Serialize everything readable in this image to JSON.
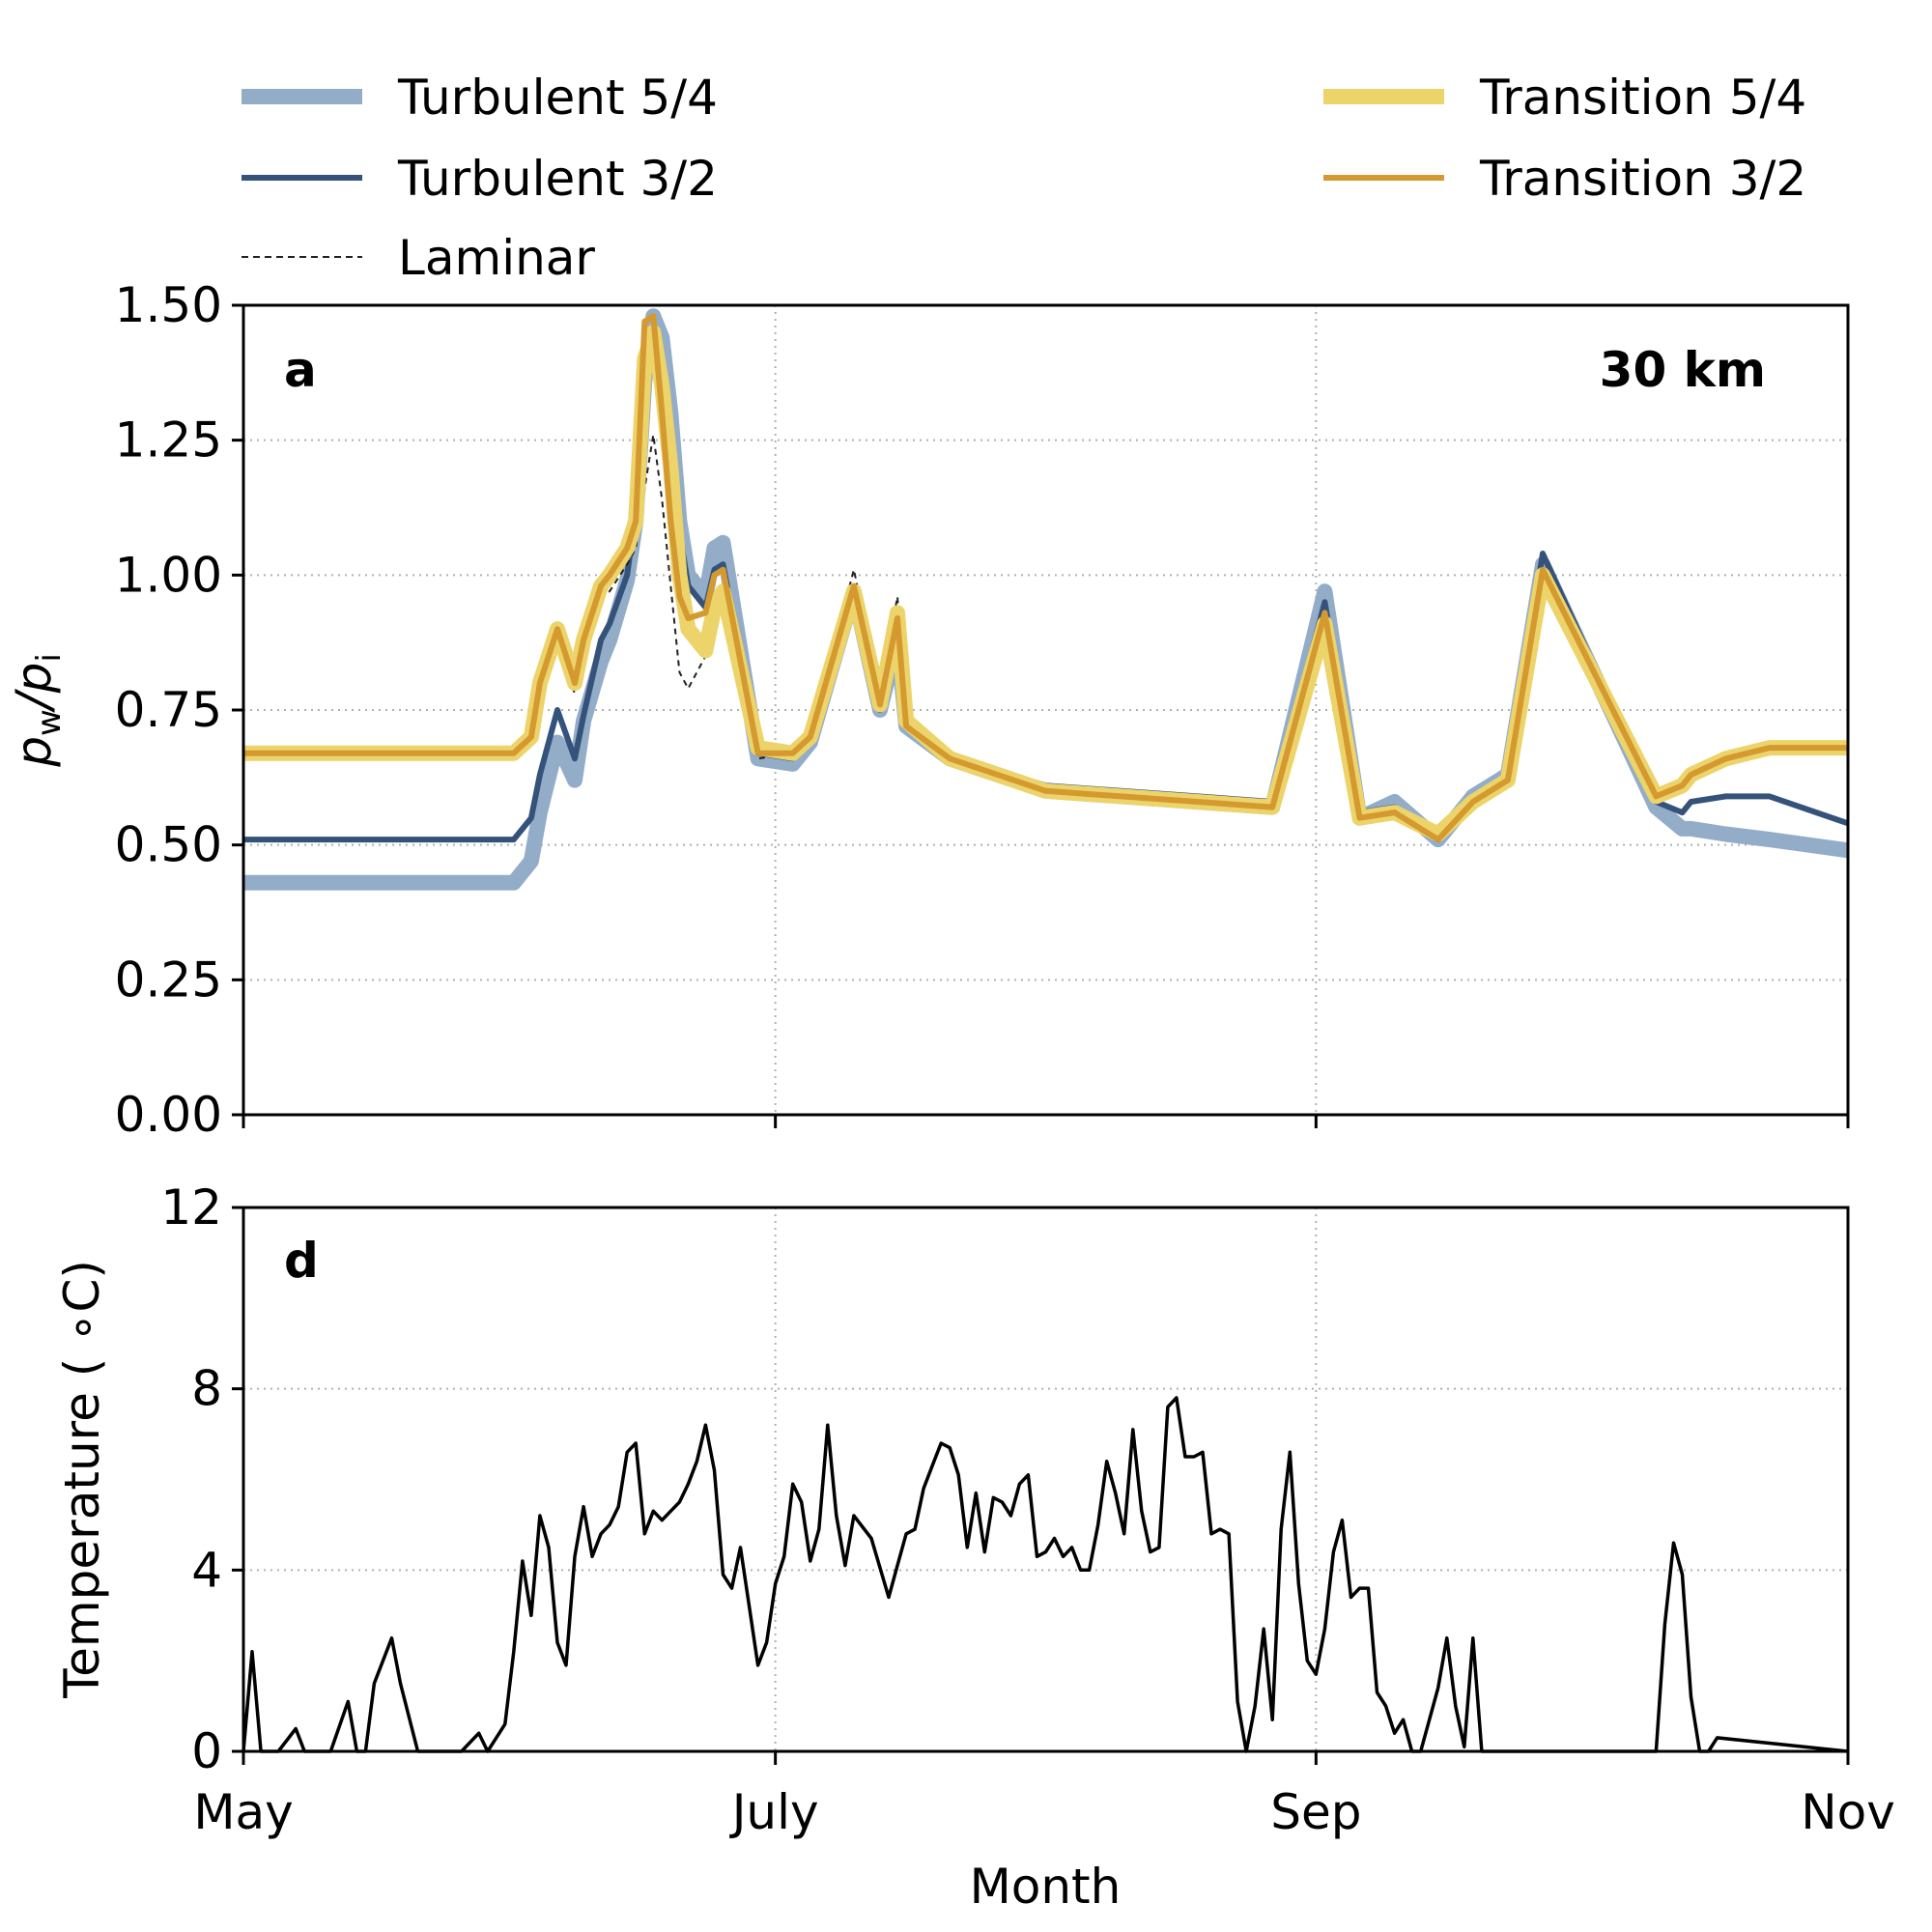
{
  "chart_data": [
    {
      "panel": "a",
      "type": "line",
      "annotation": "30 km",
      "ylabel": "p_w/p_i",
      "ylabel_main": "p",
      "ylabel_sub1": "w",
      "ylabel_sep": "/p",
      "ylabel_sub2": "i",
      "ylim": [
        0,
        1.5
      ],
      "yticks": [
        "0.00",
        "0.25",
        "0.50",
        "0.75",
        "1.00",
        "1.25",
        "1.50"
      ],
      "yticks_values": [
        0,
        0.25,
        0.5,
        0.75,
        1.0,
        1.25,
        1.5
      ],
      "xlim": [
        0,
        184
      ],
      "grid": true,
      "legend_position": "top",
      "series": [
        {
          "name": "Turbulent 5/4",
          "color": "#93adc8",
          "style": "thick",
          "x": [
            0,
            31,
            33,
            34,
            36,
            38,
            39,
            41,
            42,
            44,
            45,
            46,
            47,
            48,
            49,
            50,
            51,
            53,
            54,
            55,
            59,
            63,
            65,
            70,
            73,
            75,
            76,
            81,
            92,
            118,
            124,
            128,
            132,
            137,
            141,
            145,
            149,
            162,
            165,
            166,
            170,
            175,
            184
          ],
          "y": [
            0.43,
            0.43,
            0.47,
            0.56,
            0.69,
            0.62,
            0.73,
            0.84,
            0.88,
            0.99,
            1.1,
            1.36,
            1.48,
            1.44,
            1.3,
            1.1,
            1.0,
            0.96,
            1.05,
            1.06,
            0.66,
            0.65,
            0.69,
            0.97,
            0.75,
            0.88,
            0.72,
            0.66,
            0.6,
            0.57,
            0.97,
            0.55,
            0.58,
            0.51,
            0.59,
            0.63,
            1.02,
            0.57,
            0.53,
            0.53,
            0.52,
            0.51,
            0.49
          ]
        },
        {
          "name": "Turbulent 3/2",
          "color": "#34527a",
          "style": "medium",
          "x": [
            0,
            31,
            33,
            34,
            36,
            38,
            39,
            41,
            42,
            44,
            45,
            46,
            47,
            48,
            49,
            50,
            51,
            53,
            54,
            55,
            59,
            63,
            65,
            70,
            73,
            75,
            76,
            81,
            92,
            118,
            124,
            128,
            132,
            137,
            141,
            145,
            149,
            162,
            165,
            166,
            170,
            175,
            184
          ],
          "y": [
            0.51,
            0.51,
            0.55,
            0.63,
            0.75,
            0.66,
            0.74,
            0.88,
            0.91,
            1.0,
            1.12,
            1.38,
            1.43,
            1.38,
            1.27,
            1.08,
            0.98,
            0.94,
            1.01,
            1.02,
            0.67,
            0.66,
            0.7,
            0.96,
            0.75,
            0.87,
            0.72,
            0.66,
            0.61,
            0.58,
            0.95,
            0.56,
            0.57,
            0.52,
            0.59,
            0.63,
            1.04,
            0.58,
            0.56,
            0.58,
            0.59,
            0.59,
            0.54
          ]
        },
        {
          "name": "Laminar",
          "color": "#222222",
          "style": "dashed",
          "x": [
            0,
            31,
            33,
            34,
            36,
            38,
            39,
            41,
            42,
            44,
            45,
            46,
            47,
            48,
            49,
            50,
            51,
            53,
            54,
            55,
            59,
            63,
            65,
            70,
            73,
            75,
            76,
            81,
            92,
            118,
            124,
            128,
            132,
            137,
            141,
            145,
            149,
            162,
            165,
            166,
            170,
            175,
            184
          ],
          "y": [
            0.67,
            0.67,
            0.69,
            0.78,
            0.88,
            0.78,
            0.85,
            0.96,
            0.97,
            1.02,
            1.05,
            1.16,
            1.26,
            1.14,
            0.98,
            0.82,
            0.79,
            0.85,
            0.93,
            0.95,
            0.66,
            0.67,
            0.7,
            1.01,
            0.78,
            0.96,
            0.74,
            0.67,
            0.61,
            0.57,
            0.93,
            0.55,
            0.56,
            0.51,
            0.58,
            0.62,
            1.01,
            0.58,
            0.6,
            0.62,
            0.65,
            0.67,
            0.67
          ]
        },
        {
          "name": "Transition 5/4",
          "color": "#ecd46a",
          "style": "thick",
          "x": [
            0,
            31,
            33,
            34,
            36,
            38,
            39,
            41,
            42,
            44,
            45,
            46,
            47,
            48,
            49,
            50,
            51,
            53,
            54,
            55,
            59,
            63,
            65,
            70,
            73,
            75,
            76,
            81,
            92,
            118,
            124,
            128,
            132,
            137,
            141,
            145,
            149,
            162,
            165,
            166,
            170,
            175,
            184
          ],
          "y": [
            0.67,
            0.67,
            0.7,
            0.8,
            0.9,
            0.8,
            0.88,
            0.98,
            1.0,
            1.05,
            1.1,
            1.4,
            1.45,
            1.35,
            1.2,
            1.0,
            0.9,
            0.86,
            0.94,
            0.97,
            0.68,
            0.67,
            0.7,
            0.97,
            0.76,
            0.93,
            0.73,
            0.66,
            0.6,
            0.57,
            0.91,
            0.55,
            0.56,
            0.52,
            0.58,
            0.62,
            1.0,
            0.59,
            0.61,
            0.63,
            0.66,
            0.68,
            0.68
          ]
        },
        {
          "name": "Transition 3/2",
          "color": "#d4992f",
          "style": "medium",
          "x": [
            0,
            31,
            33,
            34,
            36,
            38,
            39,
            41,
            42,
            44,
            45,
            46,
            47,
            48,
            49,
            50,
            51,
            53,
            54,
            55,
            59,
            63,
            65,
            70,
            73,
            75,
            76,
            81,
            92,
            118,
            124,
            128,
            132,
            137,
            141,
            145,
            149,
            162,
            165,
            166,
            170,
            175,
            184
          ],
          "y": [
            0.67,
            0.67,
            0.7,
            0.8,
            0.9,
            0.8,
            0.88,
            0.98,
            1.0,
            1.05,
            1.1,
            1.47,
            1.48,
            1.3,
            1.1,
            0.96,
            0.92,
            0.93,
            1.0,
            1.01,
            0.67,
            0.67,
            0.7,
            0.98,
            0.76,
            0.92,
            0.72,
            0.66,
            0.6,
            0.57,
            0.93,
            0.55,
            0.56,
            0.51,
            0.58,
            0.62,
            1.01,
            0.59,
            0.61,
            0.63,
            0.66,
            0.68,
            0.68
          ]
        }
      ]
    },
    {
      "panel": "d",
      "type": "line",
      "ylabel": "Temperature ( ∘C)",
      "xlabel": "Month",
      "ylim": [
        0,
        12
      ],
      "yticks": [
        "0",
        "4",
        "8",
        "12"
      ],
      "yticks_values": [
        0,
        4,
        8,
        12
      ],
      "xlim": [
        0,
        184
      ],
      "xticks": [
        "May",
        "July",
        "Sep",
        "Nov"
      ],
      "xticks_values": [
        0,
        61,
        123,
        184
      ],
      "grid": true,
      "series": [
        {
          "name": "",
          "color": "#000000",
          "style": "thin",
          "x": [
            0,
            1,
            2,
            4,
            6,
            7,
            8,
            10,
            12,
            13,
            14,
            15,
            17,
            18,
            20,
            21,
            23,
            25,
            27,
            28,
            30,
            31,
            32,
            33,
            34,
            35,
            36,
            37,
            38,
            39,
            40,
            41,
            42,
            43,
            44,
            45,
            46,
            47,
            48,
            49,
            50,
            51,
            52,
            53,
            54,
            55,
            56,
            57,
            58,
            59,
            60,
            61,
            62,
            63,
            64,
            65,
            66,
            67,
            68,
            69,
            70,
            72,
            74,
            75,
            76,
            77,
            78,
            79,
            80,
            81,
            82,
            83,
            84,
            85,
            86,
            87,
            88,
            89,
            90,
            91,
            92,
            93,
            94,
            95,
            96,
            97,
            98,
            99,
            100,
            101,
            102,
            103,
            104,
            105,
            106,
            107,
            108,
            109,
            110,
            111,
            112,
            113,
            114,
            115,
            116,
            117,
            118,
            119,
            120,
            121,
            122,
            123,
            124,
            125,
            126,
            127,
            128,
            129,
            130,
            131,
            132,
            133,
            134,
            135,
            136,
            137,
            138,
            139,
            140,
            141,
            142,
            143,
            144,
            145,
            162,
            163,
            164,
            165,
            166,
            167,
            168,
            169,
            184
          ],
          "y": [
            0,
            2.2,
            0,
            0,
            0.5,
            0,
            0,
            0,
            1.1,
            0,
            0,
            1.5,
            2.5,
            1.5,
            0,
            0,
            0,
            0,
            0.4,
            0,
            0.6,
            2.2,
            4.2,
            3.0,
            5.2,
            4.5,
            2.4,
            1.9,
            4.3,
            5.4,
            4.3,
            4.8,
            5.0,
            5.4,
            6.6,
            6.8,
            4.8,
            5.3,
            5.1,
            5.3,
            5.5,
            5.9,
            6.4,
            7.2,
            6.2,
            3.9,
            3.6,
            4.5,
            3.2,
            1.9,
            2.4,
            3.7,
            4.3,
            5.9,
            5.5,
            4.2,
            4.9,
            7.2,
            5.2,
            4.1,
            5.2,
            4.7,
            3.4,
            4.1,
            4.8,
            4.9,
            5.8,
            6.3,
            6.8,
            6.7,
            6.1,
            4.5,
            5.7,
            4.4,
            5.6,
            5.5,
            5.2,
            5.9,
            6.1,
            4.3,
            4.4,
            4.7,
            4.3,
            4.5,
            4.0,
            4.0,
            5.0,
            6.4,
            5.7,
            4.8,
            7.1,
            5.3,
            4.4,
            4.5,
            7.6,
            7.8,
            6.5,
            6.5,
            6.6,
            4.8,
            4.9,
            4.8,
            1.1,
            0,
            1.0,
            2.7,
            0.7,
            4.9,
            6.6,
            3.7,
            2.0,
            1.7,
            2.7,
            4.4,
            5.1,
            3.4,
            3.6,
            3.6,
            1.3,
            1.0,
            0.4,
            0.7,
            0,
            0,
            0.7,
            1.4,
            2.5,
            1.0,
            0.1,
            2.5,
            0,
            0,
            0,
            0,
            0,
            2.8,
            4.6,
            3.9,
            1.2,
            0,
            0,
            0.3,
            0
          ]
        }
      ]
    }
  ]
}
